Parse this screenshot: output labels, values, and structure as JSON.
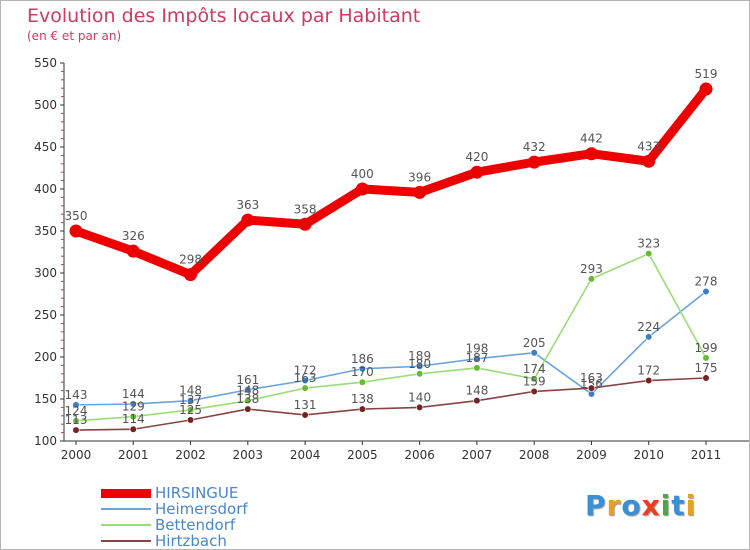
{
  "header": {
    "title": "Evolution des Impôts locaux par Habitant",
    "subtitle": "(en € et par an)"
  },
  "brand": {
    "letters": [
      "P",
      "r",
      "o",
      "x",
      "i",
      "t",
      "i"
    ],
    "colors": [
      "#3b8fd4",
      "#e8a020",
      "#3b8fd4",
      "#e84020",
      "#4aa84a",
      "#3b8fd4",
      "#e8a020"
    ]
  },
  "chart_data": {
    "type": "line",
    "title": "Evolution des Impôts locaux par Habitant",
    "subtitle": "(en € et par an)",
    "xlabel": "",
    "ylabel": "",
    "x": [
      "2000",
      "2001",
      "2002",
      "2003",
      "2004",
      "2005",
      "2006",
      "2007",
      "2008",
      "2009",
      "2010",
      "2011"
    ],
    "ylim": [
      100,
      550
    ],
    "yticks": [
      "100",
      "150",
      "200",
      "250",
      "300",
      "350",
      "400",
      "450",
      "500",
      "550"
    ],
    "grid": false,
    "legend": "bottom-left",
    "series": [
      {
        "name": "HIRSINGUE",
        "color": "#ee0000",
        "emphasis": true,
        "values": [
          350,
          326,
          298,
          363,
          358,
          400,
          396,
          420,
          432,
          442,
          433,
          519
        ],
        "labels": [
          "350",
          "326",
          "298",
          "363",
          "358",
          "400",
          "396",
          "420",
          "432",
          "442",
          "433",
          "519"
        ]
      },
      {
        "name": "Heimersdorf",
        "color": "#6aa4dc",
        "marker": "#3d7fc4",
        "values": [
          143,
          144,
          148,
          161,
          172,
          186,
          189,
          198,
          205,
          156,
          224,
          278
        ],
        "labels": [
          "143",
          "144",
          "148",
          "161",
          "172",
          "186",
          "189",
          "198",
          "205",
          "156",
          "224",
          "278"
        ]
      },
      {
        "name": "Bettendorf",
        "color": "#99dd77",
        "marker": "#66bb33",
        "values": [
          124,
          129,
          137,
          148,
          163,
          170,
          180,
          187,
          174,
          293,
          323,
          199
        ],
        "labels": [
          "124",
          "129",
          "137",
          "148",
          "163",
          "170",
          "180",
          "187",
          "174",
          "293",
          "323",
          "199"
        ]
      },
      {
        "name": "Hirtzbach",
        "color": "#884444",
        "marker": "#772222",
        "values": [
          113,
          114,
          125,
          138,
          131,
          138,
          140,
          148,
          159,
          163,
          172,
          175
        ],
        "labels": [
          "113",
          "114",
          "125",
          "138",
          "131",
          "138",
          "140",
          "148",
          "159",
          "163",
          "172",
          "175"
        ]
      }
    ]
  }
}
